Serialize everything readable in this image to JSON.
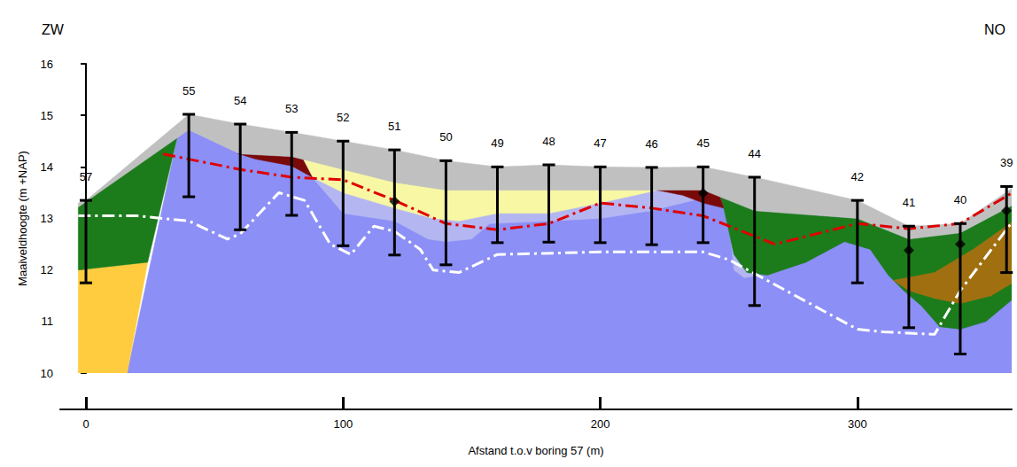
{
  "chart_data": {
    "type": "cross_section",
    "direction_labels": {
      "left": "ZW",
      "right": "NO"
    },
    "x_label": "Afstand t.o.v boring 57 (m)",
    "y_label": "Maaiveldhoogte (m +NAP)",
    "xlim": [
      -10,
      360
    ],
    "xticks": [
      0,
      100,
      200,
      300
    ],
    "ylim": [
      10,
      16
    ],
    "yticks": [
      10,
      11,
      12,
      13,
      14,
      15,
      16
    ],
    "grid": false,
    "layers": [
      {
        "color": "#8c8ff5",
        "points": [
          [
            16,
            10
          ],
          [
            36,
            14.68
          ],
          [
            40,
            14.72
          ],
          [
            60,
            14.25
          ],
          [
            80,
            14.2
          ],
          [
            100,
            13.95
          ],
          [
            120,
            13.7
          ],
          [
            140,
            13.55
          ],
          [
            160,
            13.55
          ],
          [
            200,
            13.55
          ],
          [
            240,
            13.55
          ],
          [
            260,
            13.15
          ],
          [
            300,
            13.0
          ],
          [
            320,
            12.6
          ],
          [
            340,
            12.72
          ],
          [
            362,
            13.3
          ],
          [
            362,
            10
          ]
        ]
      },
      {
        "color": "#ffcc40",
        "points": [
          [
            -3,
            10
          ],
          [
            -3,
            12.0
          ],
          [
            24,
            12.15
          ],
          [
            16,
            10
          ]
        ]
      },
      {
        "color": "#1c7c1c",
        "points": [
          [
            -3,
            12.0
          ],
          [
            -3,
            13.22
          ],
          [
            36,
            14.68
          ],
          [
            24,
            12.15
          ]
        ]
      },
      {
        "color": "#b4b6f2",
        "points": [
          [
            88,
            13.8
          ],
          [
            100,
            13.5
          ],
          [
            120,
            13.2
          ],
          [
            135,
            13.0
          ],
          [
            145,
            12.95
          ],
          [
            160,
            13.1
          ],
          [
            180,
            13.1
          ],
          [
            200,
            13.3
          ],
          [
            218,
            13.5
          ],
          [
            222,
            13.55
          ],
          [
            240,
            13.55
          ],
          [
            246,
            13.5
          ],
          [
            236,
            13.35
          ],
          [
            220,
            13.15
          ],
          [
            200,
            13.0
          ],
          [
            180,
            12.95
          ],
          [
            157,
            12.9
          ],
          [
            150,
            12.6
          ],
          [
            140,
            12.55
          ],
          [
            133,
            12.6
          ],
          [
            120,
            12.95
          ],
          [
            100,
            13.1
          ]
        ]
      },
      {
        "color": "#b4b6f2",
        "points": [
          [
            246,
            13.5
          ],
          [
            250,
            13.0
          ],
          [
            252,
            12.0
          ],
          [
            256,
            11.85
          ],
          [
            262,
            11.9
          ],
          [
            257,
            11.95
          ],
          [
            252,
            12.3
          ],
          [
            248,
            13.2
          ]
        ]
      },
      {
        "color": "#1c7c1c",
        "points": [
          [
            246,
            13.55
          ],
          [
            260,
            13.15
          ],
          [
            300,
            13.0
          ],
          [
            320,
            12.6
          ],
          [
            340,
            12.72
          ],
          [
            362,
            13.3
          ],
          [
            362,
            11.5
          ],
          [
            350,
            11.0
          ],
          [
            340,
            10.85
          ],
          [
            332,
            10.9
          ],
          [
            325,
            11.3
          ],
          [
            318,
            11.6
          ],
          [
            312,
            11.9
          ],
          [
            305,
            12.4
          ],
          [
            295,
            12.55
          ],
          [
            280,
            12.15
          ],
          [
            265,
            11.9
          ],
          [
            257,
            11.95
          ],
          [
            252,
            12.3
          ],
          [
            248,
            13.2
          ]
        ]
      },
      {
        "color": "#a07010",
        "points": [
          [
            314,
            11.8
          ],
          [
            330,
            11.95
          ],
          [
            345,
            12.4
          ],
          [
            355,
            12.75
          ],
          [
            362,
            13.0
          ],
          [
            362,
            11.8
          ],
          [
            352,
            11.5
          ],
          [
            340,
            11.35
          ],
          [
            330,
            11.45
          ],
          [
            320,
            11.6
          ]
        ]
      },
      {
        "color": "#f8f7a4",
        "points": [
          [
            84,
            14.18
          ],
          [
            100,
            13.95
          ],
          [
            120,
            13.7
          ],
          [
            140,
            13.55
          ],
          [
            160,
            13.55
          ],
          [
            200,
            13.55
          ],
          [
            222,
            13.55
          ],
          [
            218,
            13.5
          ],
          [
            200,
            13.3
          ],
          [
            180,
            13.1
          ],
          [
            160,
            13.1
          ],
          [
            145,
            12.95
          ],
          [
            135,
            13.0
          ],
          [
            120,
            13.2
          ],
          [
            100,
            13.5
          ],
          [
            88,
            13.8
          ]
        ]
      },
      {
        "color": "#7a0a0a",
        "points": [
          [
            59,
            14.26
          ],
          [
            80,
            14.2
          ],
          [
            84,
            14.18
          ],
          [
            88,
            13.8
          ],
          [
            80,
            14.02
          ],
          [
            66,
            14.15
          ]
        ]
      },
      {
        "color": "#7a0a0a",
        "points": [
          [
            222,
            13.55
          ],
          [
            240,
            13.55
          ],
          [
            246,
            13.5
          ],
          [
            248,
            13.2
          ],
          [
            240,
            13.3
          ],
          [
            232,
            13.45
          ]
        ]
      },
      {
        "color": "#c0c0c0",
        "points": [
          [
            -3,
            13.3
          ],
          [
            0,
            13.35
          ],
          [
            40,
            15.02
          ],
          [
            60,
            14.83
          ],
          [
            80,
            14.67
          ],
          [
            100,
            14.5
          ],
          [
            120,
            14.33
          ],
          [
            140,
            14.12
          ],
          [
            160,
            14.0
          ],
          [
            180,
            14.04
          ],
          [
            200,
            14.0
          ],
          [
            220,
            13.99
          ],
          [
            240,
            14.0
          ],
          [
            260,
            13.8
          ],
          [
            300,
            13.35
          ],
          [
            320,
            12.85
          ],
          [
            340,
            12.9
          ],
          [
            362,
            13.65
          ],
          [
            362,
            13.3
          ],
          [
            340,
            12.72
          ],
          [
            320,
            12.6
          ],
          [
            300,
            13.0
          ],
          [
            260,
            13.15
          ],
          [
            240,
            13.55
          ],
          [
            200,
            13.55
          ],
          [
            160,
            13.55
          ],
          [
            140,
            13.55
          ],
          [
            120,
            13.7
          ],
          [
            100,
            13.95
          ],
          [
            80,
            14.2
          ],
          [
            60,
            14.25
          ],
          [
            40,
            14.72
          ],
          [
            -3,
            13.22
          ]
        ]
      }
    ],
    "boreholes": {
      "color": "#000000",
      "items": [
        {
          "label": "57",
          "x": 0,
          "top": 13.35,
          "bottom": 11.75
        },
        {
          "label": "55",
          "x": 40,
          "top": 15.02,
          "bottom": 13.42
        },
        {
          "label": "54",
          "x": 60,
          "top": 14.83,
          "bottom": 12.78
        },
        {
          "label": "53",
          "x": 80,
          "top": 14.67,
          "bottom": 13.06
        },
        {
          "label": "52",
          "x": 100,
          "top": 14.5,
          "bottom": 12.47
        },
        {
          "label": "51",
          "x": 120,
          "top": 14.33,
          "bottom": 12.29
        },
        {
          "label": "50",
          "x": 140,
          "top": 14.12,
          "bottom": 12.1
        },
        {
          "label": "49",
          "x": 160,
          "top": 14.0,
          "bottom": 12.53
        },
        {
          "label": "48",
          "x": 180,
          "top": 14.04,
          "bottom": 12.54
        },
        {
          "label": "47",
          "x": 200,
          "top": 14.0,
          "bottom": 12.53
        },
        {
          "label": "46",
          "x": 220,
          "top": 13.99,
          "bottom": 12.49
        },
        {
          "label": "45",
          "x": 240,
          "top": 14.0,
          "bottom": 12.53
        },
        {
          "label": "44",
          "x": 260,
          "top": 13.8,
          "bottom": 11.31
        },
        {
          "label": "42",
          "x": 300,
          "top": 13.35,
          "bottom": 11.75
        },
        {
          "label": "41",
          "x": 320,
          "top": 12.85,
          "bottom": 10.88
        },
        {
          "label": "40",
          "x": 340,
          "top": 12.9,
          "bottom": 10.37
        },
        {
          "label": "39",
          "x": 358,
          "top": 13.62,
          "bottom": 11.95
        }
      ]
    },
    "series": [
      {
        "type": "line",
        "color": "#ffffff",
        "line_style": "dashdot",
        "values": [
          [
            -3,
            13.05
          ],
          [
            20,
            13.05
          ],
          [
            40,
            12.95
          ],
          [
            55,
            12.6
          ],
          [
            60,
            12.7
          ],
          [
            75,
            13.5
          ],
          [
            85,
            13.35
          ],
          [
            95,
            12.5
          ],
          [
            103,
            12.3
          ],
          [
            112,
            12.85
          ],
          [
            120,
            12.75
          ],
          [
            130,
            12.4
          ],
          [
            135,
            12.0
          ],
          [
            145,
            11.95
          ],
          [
            160,
            12.3
          ],
          [
            200,
            12.35
          ],
          [
            240,
            12.35
          ],
          [
            250,
            12.2
          ],
          [
            300,
            10.85
          ],
          [
            310,
            10.8
          ],
          [
            330,
            10.75
          ],
          [
            340,
            11.6
          ],
          [
            362,
            13.05
          ]
        ]
      },
      {
        "type": "line",
        "color": "#e00000",
        "line_style": "dashdot",
        "values": [
          [
            30,
            14.25
          ],
          [
            60,
            13.95
          ],
          [
            80,
            13.8
          ],
          [
            100,
            13.75
          ],
          [
            120,
            13.35
          ],
          [
            140,
            12.9
          ],
          [
            160,
            12.78
          ],
          [
            180,
            12.9
          ],
          [
            200,
            13.3
          ],
          [
            220,
            13.2
          ],
          [
            240,
            13.05
          ],
          [
            268,
            12.5
          ],
          [
            300,
            12.9
          ],
          [
            320,
            12.8
          ],
          [
            340,
            12.9
          ],
          [
            362,
            13.55
          ]
        ]
      },
      {
        "type": "scatter",
        "color": "#000000",
        "marker": "diamond",
        "values": [
          [
            120,
            13.33
          ],
          [
            240,
            13.49
          ],
          [
            320,
            12.38
          ],
          [
            340,
            12.5
          ],
          [
            358,
            13.15
          ]
        ]
      }
    ]
  }
}
